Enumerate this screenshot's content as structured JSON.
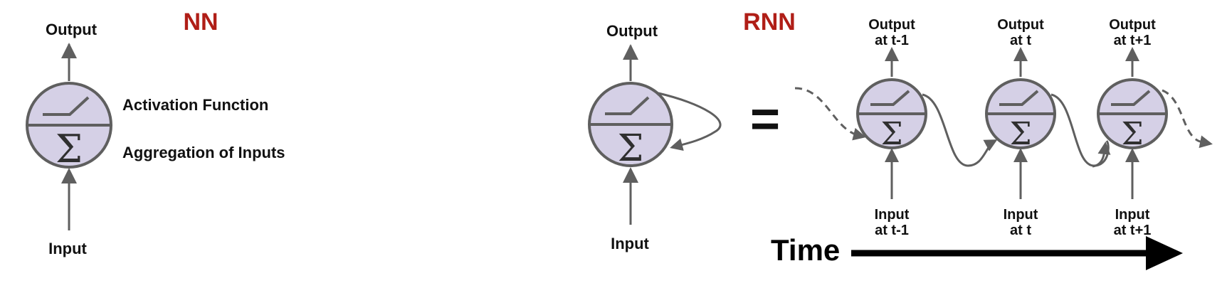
{
  "nn": {
    "title": "NN",
    "output_label": "Output",
    "input_label": "Input",
    "activation_label": "Activation Function",
    "aggregation_label": "Aggregation of Inputs"
  },
  "rnn": {
    "title": "RNN",
    "output_label": "Output",
    "input_label": "Input",
    "equals": "=",
    "unrolled": [
      {
        "output_line1": "Output",
        "output_line2": "at t-1",
        "input_line1": "Input",
        "input_line2": "at t-1"
      },
      {
        "output_line1": "Output",
        "output_line2": "at t",
        "input_line1": "Input",
        "input_line2": "at t"
      },
      {
        "output_line1": "Output",
        "output_line2": "at t+1",
        "input_line1": "Input",
        "input_line2": "at t+1"
      }
    ],
    "time_label": "Time"
  },
  "sigma_symbol": "Σ",
  "colors": {
    "title": "#b01e17",
    "neuron_fill": "#d5d0e6",
    "stroke": "#5f5f5f",
    "text": "#111111",
    "time_arrow": "#000000"
  }
}
